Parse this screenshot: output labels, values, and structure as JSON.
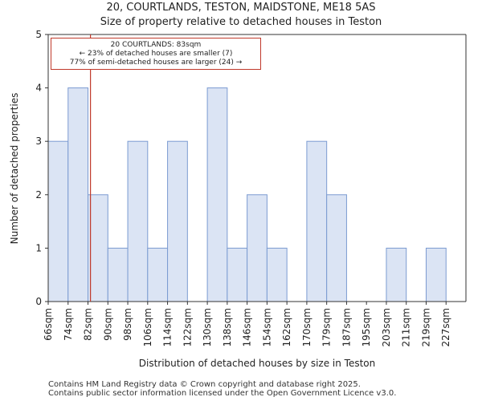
{
  "chart_data": {
    "type": "bar",
    "title": "20, COURTLANDS, TESTON, MAIDSTONE, ME18 5AS",
    "subtitle": "Size of property relative to detached houses in Teston",
    "xlabel": "Distribution of detached houses by size in Teston",
    "ylabel": "Number of detached properties",
    "categories": [
      "66sqm",
      "74sqm",
      "82sqm",
      "90sqm",
      "98sqm",
      "106sqm",
      "114sqm",
      "122sqm",
      "130sqm",
      "138sqm",
      "146sqm",
      "154sqm",
      "162sqm",
      "170sqm",
      "179sqm",
      "187sqm",
      "195sqm",
      "203sqm",
      "211sqm",
      "219sqm",
      "227sqm"
    ],
    "values": [
      3,
      4,
      2,
      1,
      3,
      1,
      3,
      0,
      4,
      1,
      2,
      1,
      0,
      3,
      2,
      0,
      0,
      1,
      0,
      1,
      0
    ],
    "ylim": [
      0,
      5
    ],
    "yticks": [
      0,
      1,
      2,
      3,
      4,
      5
    ],
    "bar_color": "#dbe4f4",
    "bar_edge_color": "#7b9bd1",
    "marker": {
      "value": 83,
      "color": "#c0392b"
    },
    "annotation": {
      "line1": "20 COURTLANDS: 83sqm",
      "line2": "← 23% of detached houses are smaller (7)",
      "line3": "77% of semi-detached houses are larger (24) →"
    },
    "grid": false
  },
  "footer": {
    "line1": "Contains HM Land Registry data © Crown copyright and database right 2025.",
    "line2": "Contains public sector information licensed under the Open Government Licence v3.0."
  }
}
